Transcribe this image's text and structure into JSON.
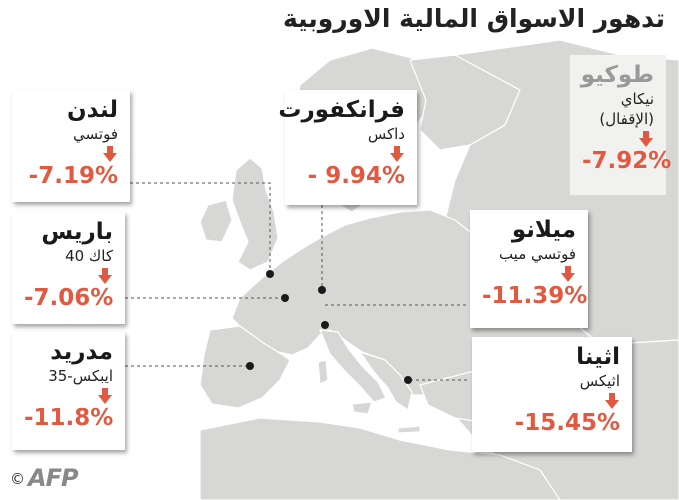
{
  "title": "تدهور الاسواق المالية الاوروبية",
  "credit_symbol": "©",
  "credit_logo": "AFP",
  "markets": [
    {
      "city": "لندن",
      "index": "فوتسي",
      "change": "-7.19%"
    },
    {
      "city": "فرانكفورت",
      "index": "داكس",
      "change": "- 9.94%"
    },
    {
      "city": "طوكيو",
      "index": "نيكاي",
      "index_note": "(الإقفال)",
      "change": "-7.92%"
    },
    {
      "city": "باريس",
      "index": "كاك 40",
      "change": "-7.06%"
    },
    {
      "city": "ميلانو",
      "index": "فوتسي ميب",
      "change": "-11.39%"
    },
    {
      "city": "مدريد",
      "index": "ايبكس-35",
      "change": "-11.8%"
    },
    {
      "city": "اثينا",
      "index": "اثيكس",
      "change": "-15.45%"
    }
  ],
  "colors": {
    "land": "#d7d7d5",
    "sea": "#ffffff",
    "decline": "#e05a41",
    "city_dot": "#1a1a1a",
    "leader_line": "#555555"
  },
  "icons": {
    "arrow": "down-arrow-icon",
    "city_marker": "city-dot-icon"
  }
}
